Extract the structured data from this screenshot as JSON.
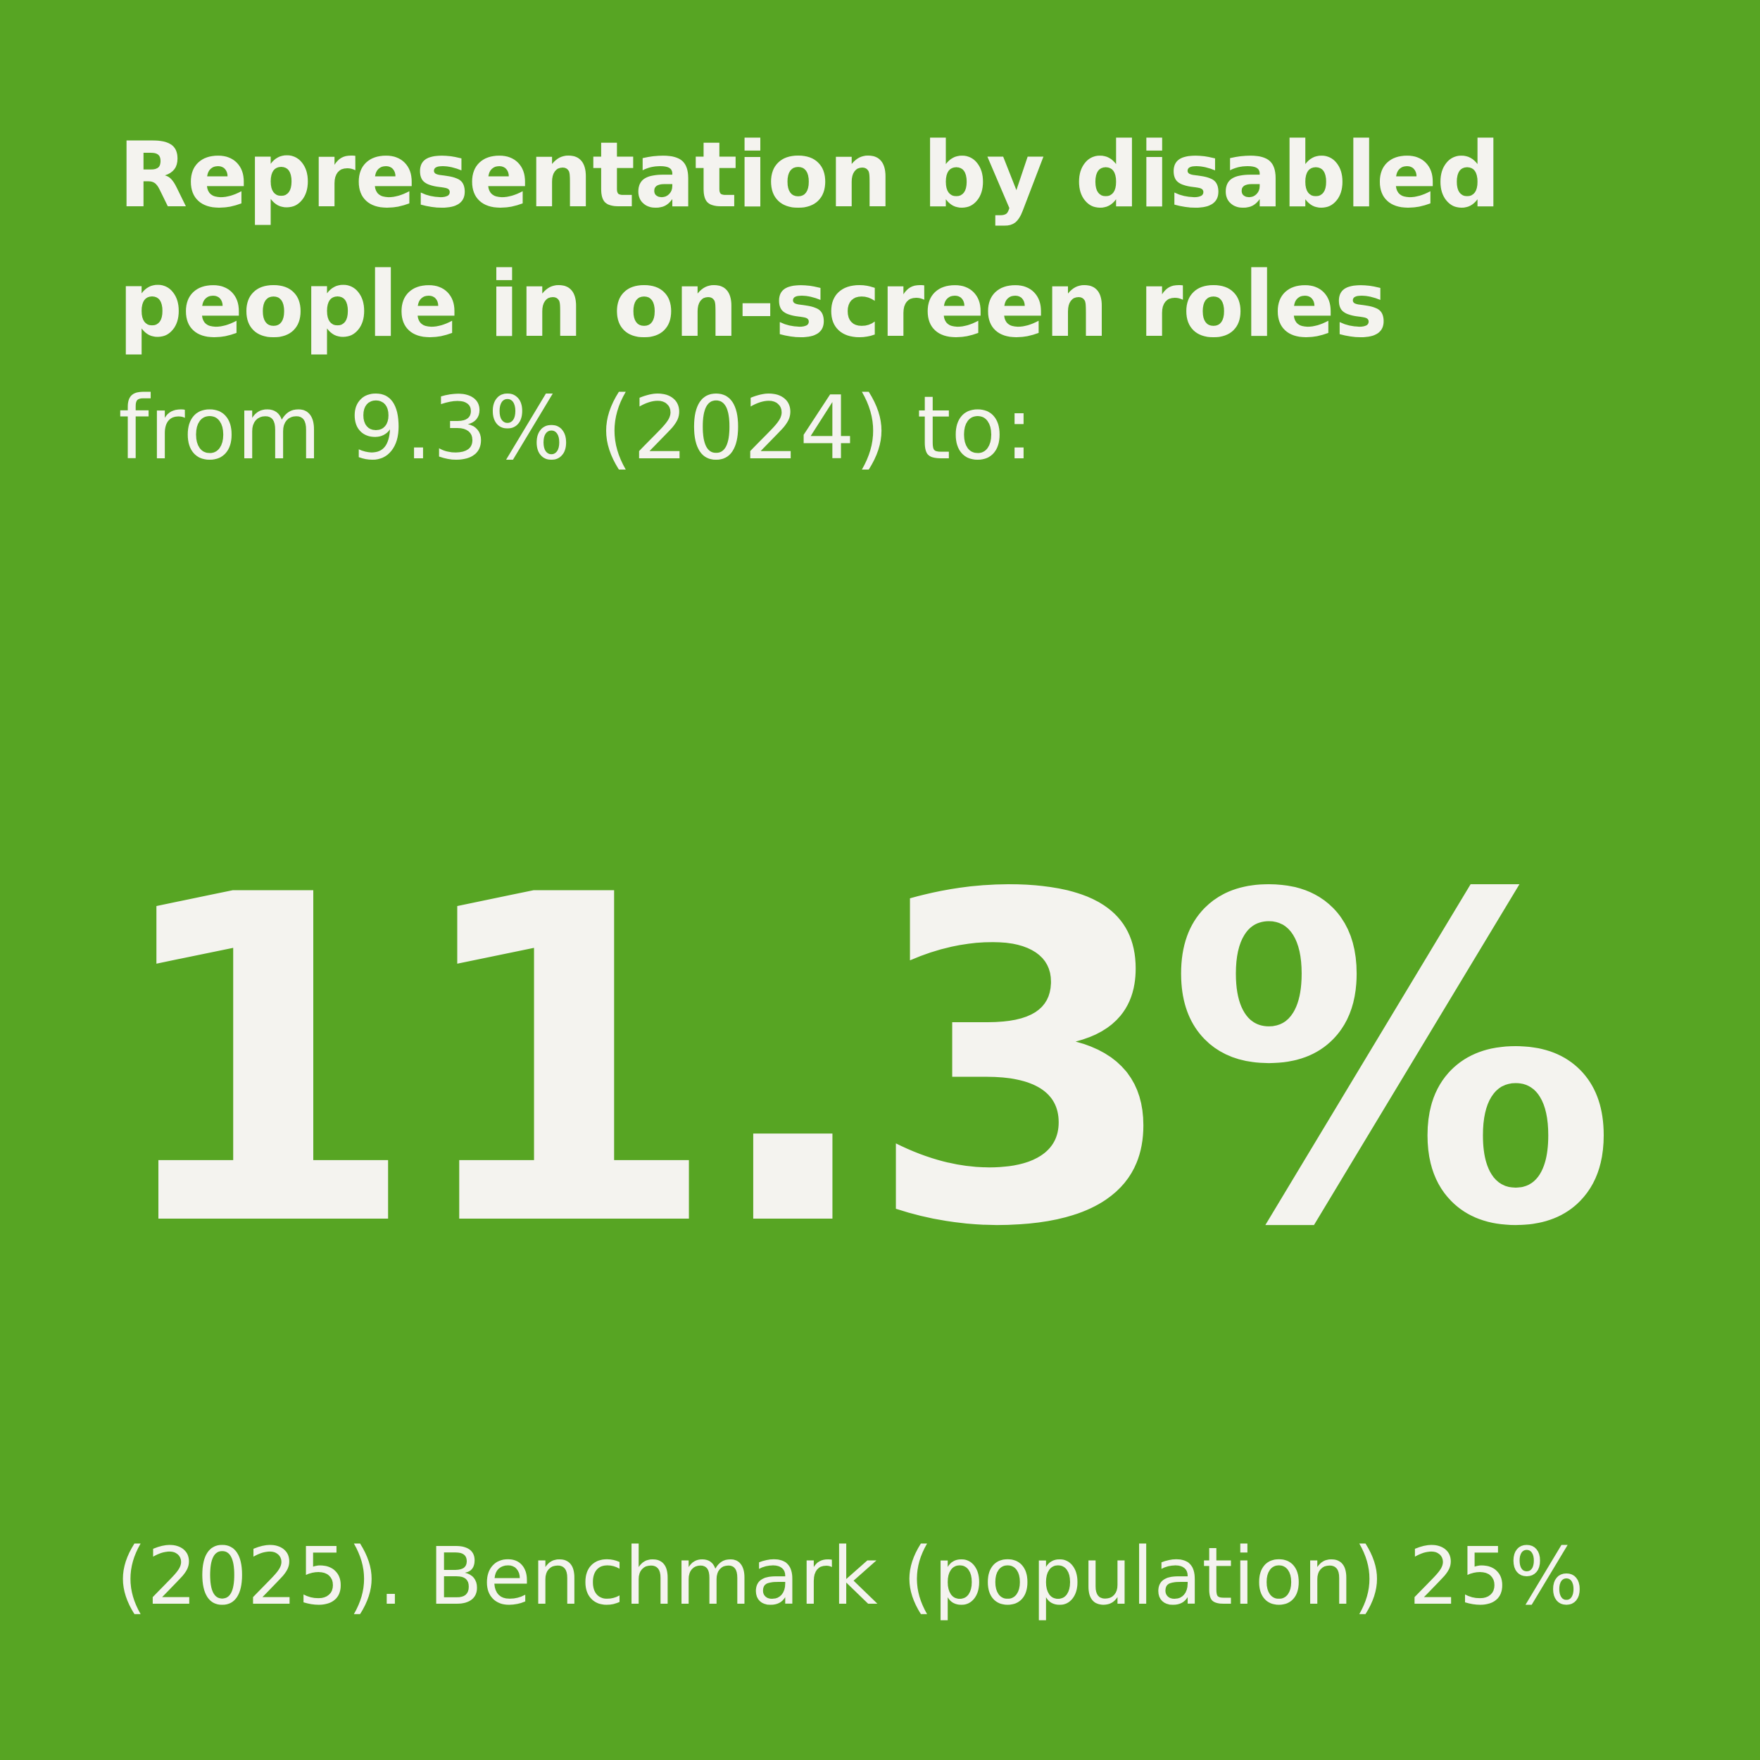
{
  "background_color": "#57a523",
  "text_color": "#f4f3ef",
  "headline": {
    "line1": "Representation by disabled",
    "line2": "people in on-screen roles"
  },
  "subline": "from 9.3% (2024) to:",
  "big_value": "11.3%",
  "footer": "(2025). Benchmark (population) 25%"
}
